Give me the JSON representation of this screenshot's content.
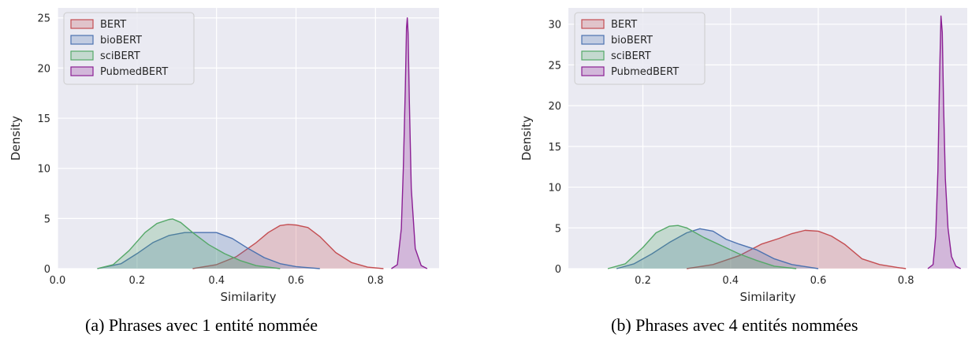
{
  "chart_data": [
    {
      "type": "area",
      "caption": "(a) Phrases avec 1 entité nommée",
      "xlabel": "Similarity",
      "ylabel": "Density",
      "xlim": [
        0.0,
        0.96
      ],
      "ylim": [
        0,
        26
      ],
      "xticks": [
        "0.0",
        "0.2",
        "0.4",
        "0.6",
        "0.8"
      ],
      "yticks": [
        "0",
        "5",
        "10",
        "15",
        "20",
        "25"
      ],
      "grid": true,
      "legend_position": "top-left",
      "series": [
        {
          "name": "BERT",
          "color": "#c44e52",
          "x": [
            0.34,
            0.4,
            0.45,
            0.5,
            0.53,
            0.56,
            0.58,
            0.6,
            0.63,
            0.66,
            0.7,
            0.74,
            0.78,
            0.82
          ],
          "y": [
            0,
            0.4,
            1.2,
            2.6,
            3.6,
            4.3,
            4.4,
            4.35,
            4.1,
            3.2,
            1.6,
            0.6,
            0.15,
            0
          ]
        },
        {
          "name": "bioBERT",
          "color": "#4c72b0",
          "x": [
            0.1,
            0.16,
            0.2,
            0.24,
            0.28,
            0.32,
            0.36,
            0.4,
            0.44,
            0.48,
            0.52,
            0.56,
            0.6,
            0.66
          ],
          "y": [
            0,
            0.5,
            1.5,
            2.6,
            3.3,
            3.6,
            3.6,
            3.6,
            3.0,
            2.0,
            1.1,
            0.5,
            0.2,
            0
          ]
        },
        {
          "name": "sciBERT",
          "color": "#55a868",
          "x": [
            0.1,
            0.14,
            0.18,
            0.22,
            0.25,
            0.28,
            0.29,
            0.31,
            0.34,
            0.38,
            0.42,
            0.46,
            0.5,
            0.56
          ],
          "y": [
            0,
            0.4,
            1.8,
            3.6,
            4.5,
            4.9,
            4.95,
            4.6,
            3.6,
            2.4,
            1.5,
            0.8,
            0.3,
            0
          ]
        },
        {
          "name": "PubmedBERT",
          "color": "#8b1f94",
          "x": [
            0.84,
            0.855,
            0.865,
            0.87,
            0.875,
            0.878,
            0.88,
            0.882,
            0.885,
            0.89,
            0.9,
            0.915,
            0.93
          ],
          "y": [
            0,
            0.4,
            4,
            10,
            18,
            24,
            25,
            23.5,
            17,
            8,
            2,
            0.3,
            0
          ]
        }
      ]
    },
    {
      "type": "area",
      "caption": "(b) Phrases avec 4 entités nommées",
      "xlabel": "Similarity",
      "ylabel": "Density",
      "xlim": [
        0.03,
        0.94
      ],
      "ylim": [
        0,
        32
      ],
      "xticks": [
        "0.2",
        "0.4",
        "0.6",
        "0.8"
      ],
      "yticks": [
        "0",
        "5",
        "10",
        "15",
        "20",
        "25",
        "30"
      ],
      "grid": true,
      "legend_position": "top-left",
      "series": [
        {
          "name": "BERT",
          "color": "#c44e52",
          "x": [
            0.3,
            0.36,
            0.42,
            0.47,
            0.51,
            0.54,
            0.57,
            0.6,
            0.63,
            0.66,
            0.7,
            0.74,
            0.78,
            0.8
          ],
          "y": [
            0,
            0.5,
            1.6,
            3.0,
            3.7,
            4.3,
            4.7,
            4.6,
            4.0,
            3.0,
            1.2,
            0.5,
            0.15,
            0
          ]
        },
        {
          "name": "bioBERT",
          "color": "#4c72b0",
          "x": [
            0.14,
            0.18,
            0.22,
            0.26,
            0.3,
            0.33,
            0.36,
            0.39,
            0.42,
            0.46,
            0.5,
            0.54,
            0.6
          ],
          "y": [
            0,
            0.6,
            1.8,
            3.2,
            4.4,
            4.9,
            4.6,
            3.6,
            3.0,
            2.3,
            1.2,
            0.5,
            0
          ]
        },
        {
          "name": "sciBERT",
          "color": "#55a868",
          "x": [
            0.12,
            0.16,
            0.2,
            0.23,
            0.26,
            0.28,
            0.3,
            0.34,
            0.38,
            0.42,
            0.46,
            0.5,
            0.55
          ],
          "y": [
            0,
            0.6,
            2.6,
            4.4,
            5.2,
            5.3,
            5.0,
            3.8,
            2.8,
            1.8,
            1.0,
            0.3,
            0
          ]
        },
        {
          "name": "PubmedBERT",
          "color": "#8b1f94",
          "x": [
            0.85,
            0.862,
            0.868,
            0.873,
            0.877,
            0.88,
            0.883,
            0.886,
            0.89,
            0.896,
            0.904,
            0.914,
            0.925
          ],
          "y": [
            0,
            0.5,
            4,
            12,
            24,
            31,
            29,
            20,
            11,
            5,
            1.5,
            0.3,
            0
          ]
        }
      ]
    }
  ]
}
